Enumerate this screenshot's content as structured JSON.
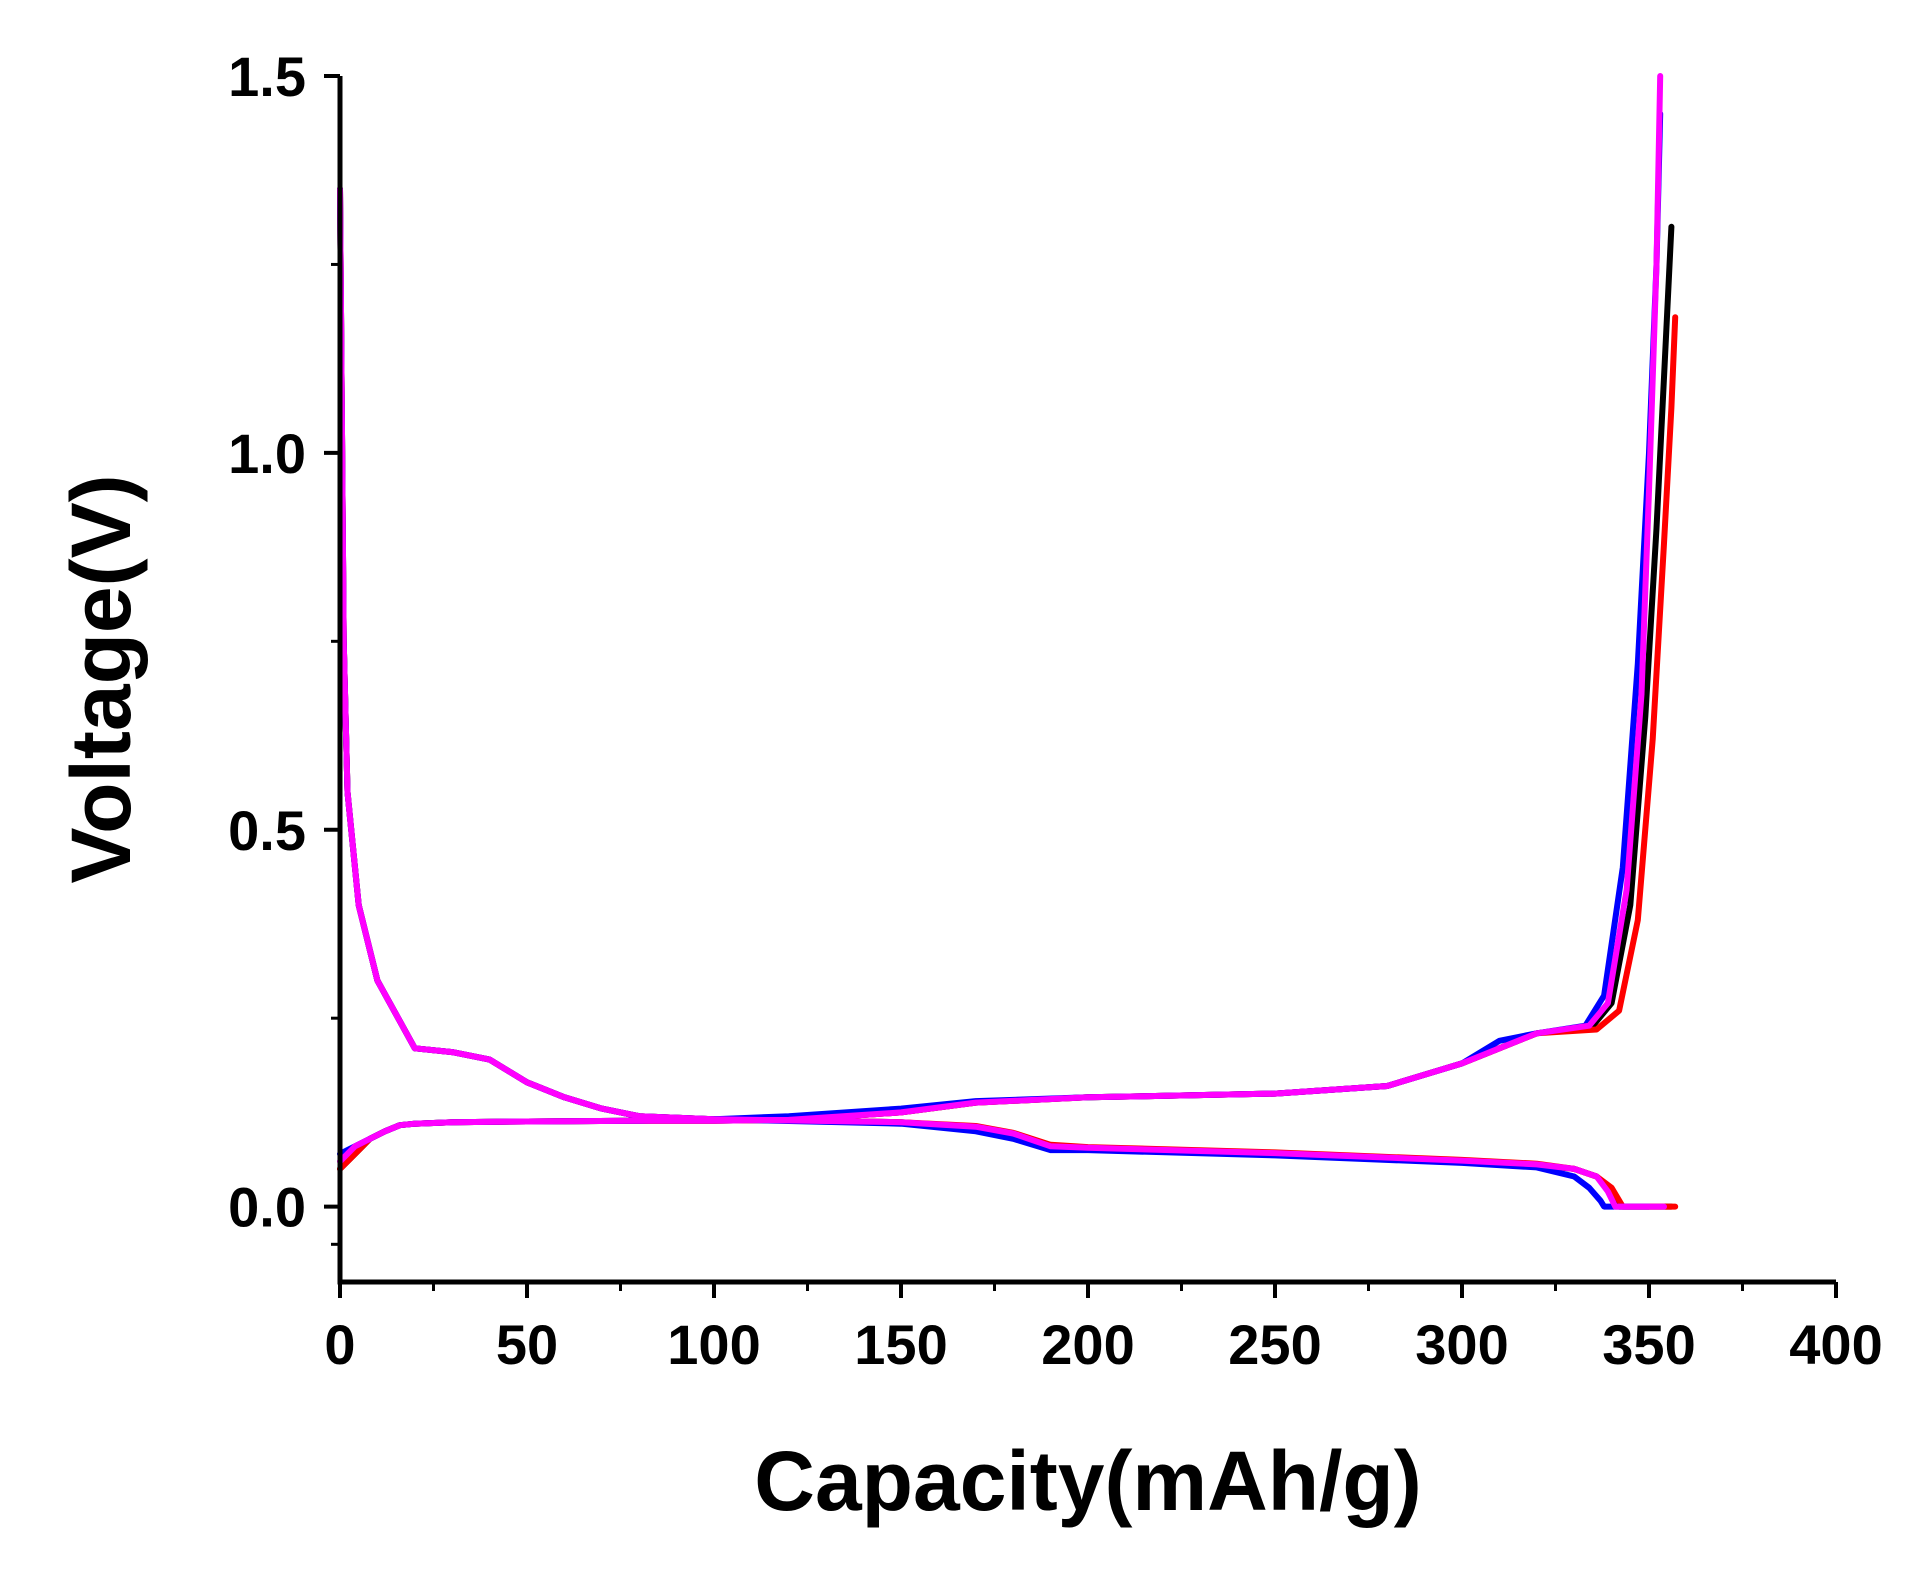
{
  "chart_data": {
    "type": "line",
    "title": "",
    "xlabel": "Capacity(mAh/g)",
    "ylabel": "Voltage(V)",
    "xlim": [
      0,
      400
    ],
    "ylim": [
      -0.1,
      1.5
    ],
    "x_ticks": [
      0,
      50,
      100,
      150,
      200,
      250,
      300,
      350,
      400
    ],
    "y_ticks": [
      0.0,
      0.5,
      1.0,
      1.5
    ],
    "x_tick_labels": [
      "0",
      "50",
      "100",
      "150",
      "200",
      "250",
      "300",
      "350",
      "400"
    ],
    "y_tick_labels": [
      "0.0",
      "0.5",
      "1.0",
      "1.5"
    ],
    "grid": false,
    "legend": null,
    "series": [
      {
        "color": "#000000",
        "segments": [
          {
            "x": [
              0,
              2,
              4,
              8,
              12,
              16,
              20,
              30,
              50,
              80,
              100,
              120,
              150,
              170,
              200,
              250,
              280,
              300,
              310,
              320,
              335,
              340,
              345,
              349,
              352,
              354,
              356
            ],
            "y": [
              0.05,
              0.06,
              0.07,
              0.09,
              0.1,
              0.108,
              0.11,
              0.112,
              0.113,
              0.114,
              0.114,
              0.115,
              0.125,
              0.138,
              0.145,
              0.15,
              0.16,
              0.19,
              0.21,
              0.23,
              0.24,
              0.27,
              0.4,
              0.65,
              0.9,
              1.1,
              1.3
            ]
          },
          {
            "x": [
              0,
              1,
              2,
              5,
              10,
              20,
              30,
              40,
              50,
              60,
              70,
              80,
              90,
              100,
              150,
              170,
              180,
              190,
              200,
              250,
              300,
              320,
              330,
              336,
              340,
              342,
              345,
              350,
              356
            ],
            "y": [
              1.35,
              0.75,
              0.55,
              0.4,
              0.3,
              0.21,
              0.205,
              0.195,
              0.165,
              0.145,
              0.13,
              0.12,
              0.118,
              0.116,
              0.112,
              0.105,
              0.095,
              0.08,
              0.078,
              0.07,
              0.06,
              0.055,
              0.05,
              0.04,
              0.02,
              0.0,
              0.0,
              0.0,
              0.0
            ]
          }
        ]
      },
      {
        "color": "#ff0000",
        "segments": [
          {
            "x": [
              0,
              2,
              4,
              8,
              12,
              16,
              20,
              30,
              50,
              80,
              100,
              120,
              150,
              170,
              200,
              250,
              280,
              300,
              310,
              320,
              336,
              342,
              347,
              351,
              354,
              356,
              357
            ],
            "y": [
              0.05,
              0.06,
              0.07,
              0.09,
              0.1,
              0.108,
              0.11,
              0.112,
              0.113,
              0.114,
              0.114,
              0.115,
              0.125,
              0.138,
              0.145,
              0.15,
              0.16,
              0.19,
              0.21,
              0.23,
              0.235,
              0.26,
              0.38,
              0.62,
              0.88,
              1.06,
              1.18
            ]
          },
          {
            "x": [
              0,
              1,
              2,
              5,
              10,
              20,
              30,
              40,
              50,
              60,
              70,
              80,
              90,
              100,
              150,
              170,
              180,
              190,
              200,
              250,
              300,
              320,
              330,
              336,
              340,
              343,
              350,
              357
            ],
            "y": [
              1.35,
              0.75,
              0.55,
              0.4,
              0.3,
              0.21,
              0.205,
              0.195,
              0.165,
              0.145,
              0.13,
              0.12,
              0.118,
              0.116,
              0.112,
              0.107,
              0.098,
              0.082,
              0.079,
              0.072,
              0.062,
              0.057,
              0.05,
              0.04,
              0.025,
              0.0,
              0.0,
              0.0
            ]
          }
        ]
      },
      {
        "color": "#0000ff",
        "segments": [
          {
            "x": [
              0,
              2,
              4,
              8,
              12,
              16,
              20,
              30,
              50,
              80,
              100,
              120,
              150,
              170,
              200,
              250,
              280,
              300,
              310,
              320,
              333,
              338,
              343,
              347,
              350,
              352,
              353
            ],
            "y": [
              0.07,
              0.075,
              0.08,
              0.09,
              0.1,
              0.108,
              0.11,
              0.112,
              0.113,
              0.114,
              0.116,
              0.12,
              0.13,
              0.14,
              0.145,
              0.15,
              0.16,
              0.19,
              0.22,
              0.23,
              0.24,
              0.28,
              0.45,
              0.72,
              1.0,
              1.25,
              1.45
            ]
          },
          {
            "x": [
              0,
              1,
              2,
              5,
              10,
              20,
              30,
              40,
              50,
              60,
              70,
              80,
              90,
              100,
              150,
              170,
              180,
              190,
              200,
              250,
              300,
              320,
              330,
              334,
              337,
              338,
              345,
              350
            ],
            "y": [
              1.35,
              0.75,
              0.55,
              0.4,
              0.3,
              0.21,
              0.205,
              0.195,
              0.165,
              0.145,
              0.13,
              0.12,
              0.118,
              0.116,
              0.11,
              0.1,
              0.09,
              0.075,
              0.075,
              0.068,
              0.058,
              0.052,
              0.04,
              0.025,
              0.008,
              0.0,
              0.0,
              0.0
            ]
          }
        ]
      },
      {
        "color": "#ff00ff",
        "segments": [
          {
            "x": [
              0,
              2,
              4,
              8,
              12,
              16,
              20,
              30,
              50,
              80,
              100,
              120,
              150,
              170,
              200,
              250,
              280,
              300,
              310,
              320,
              334,
              339,
              344,
              348,
              350,
              352,
              353
            ],
            "y": [
              0.06,
              0.07,
              0.08,
              0.09,
              0.1,
              0.108,
              0.11,
              0.112,
              0.113,
              0.114,
              0.114,
              0.115,
              0.125,
              0.138,
              0.145,
              0.15,
              0.16,
              0.19,
              0.21,
              0.23,
              0.24,
              0.27,
              0.42,
              0.68,
              0.95,
              1.25,
              1.5
            ]
          },
          {
            "x": [
              0,
              1,
              2,
              5,
              10,
              20,
              30,
              40,
              50,
              60,
              70,
              80,
              90,
              100,
              150,
              170,
              180,
              190,
              200,
              250,
              300,
              320,
              330,
              336,
              339,
              341,
              350,
              354
            ],
            "y": [
              1.35,
              0.75,
              0.55,
              0.4,
              0.3,
              0.21,
              0.205,
              0.195,
              0.165,
              0.145,
              0.13,
              0.12,
              0.118,
              0.116,
              0.112,
              0.106,
              0.097,
              0.08,
              0.078,
              0.071,
              0.061,
              0.056,
              0.05,
              0.04,
              0.02,
              0.0,
              0.0,
              0.0
            ]
          }
        ]
      }
    ]
  }
}
